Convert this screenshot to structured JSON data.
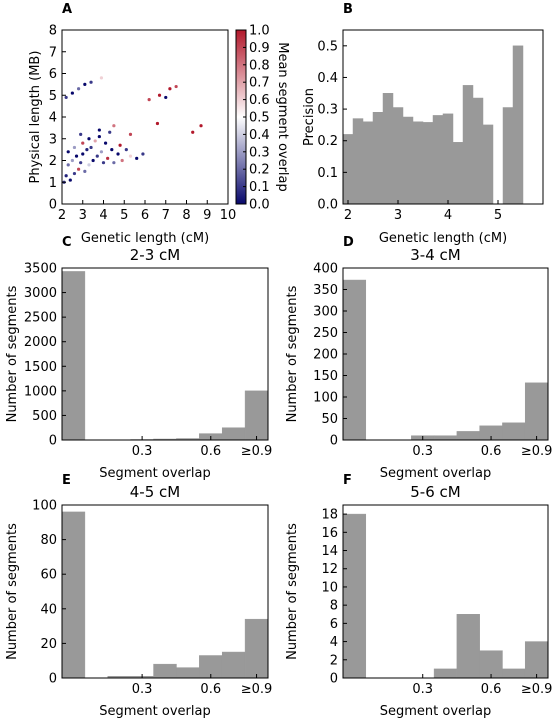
{
  "panels": {
    "A": {
      "label": "A"
    },
    "B": {
      "label": "B"
    },
    "C": {
      "label": "C"
    },
    "D": {
      "label": "D"
    },
    "E": {
      "label": "E"
    },
    "F": {
      "label": "F"
    }
  },
  "colors": {
    "bar": "#999999",
    "cmap_low": "#08086b",
    "cmap_mid": "#ffffff",
    "cmap_high": "#b2182b"
  },
  "chart_data": [
    {
      "id": "A",
      "type": "scatter",
      "title": "",
      "xlabel": "Genetic length (cM)",
      "ylabel": "Physical length (MB)",
      "xlim": [
        2,
        10
      ],
      "ylim": [
        0,
        8
      ],
      "xticks": [
        "2",
        "3",
        "4",
        "5",
        "6",
        "7",
        "8",
        "9",
        "10"
      ],
      "yticks": [
        "0",
        "1",
        "2",
        "3",
        "4",
        "5",
        "6",
        "7",
        "8"
      ],
      "colorbar": {
        "label": "Mean segment overlap",
        "range": [
          0.0,
          1.0
        ],
        "ticks": [
          "0.0",
          "0.1",
          "0.2",
          "0.3",
          "0.4",
          "0.5",
          "0.6",
          "0.7",
          "0.8",
          "0.9",
          "1.0"
        ]
      },
      "points_note_free": true,
      "points": [
        [
          2.1,
          1.0,
          0.1
        ],
        [
          2.2,
          1.3,
          0.05
        ],
        [
          2.3,
          1.8,
          0.2
        ],
        [
          2.4,
          1.1,
          0.0
        ],
        [
          2.5,
          2.0,
          0.3
        ],
        [
          2.6,
          1.4,
          0.1
        ],
        [
          2.7,
          2.2,
          0.0
        ],
        [
          2.8,
          1.6,
          0.9
        ],
        [
          2.9,
          1.9,
          0.1
        ],
        [
          3.0,
          2.3,
          0.0
        ],
        [
          3.1,
          1.5,
          0.2
        ],
        [
          3.2,
          2.5,
          0.05
        ],
        [
          3.3,
          1.8,
          0.4
        ],
        [
          3.4,
          2.6,
          0.1
        ],
        [
          3.5,
          2.0,
          0.0
        ],
        [
          3.6,
          2.9,
          0.7
        ],
        [
          3.7,
          2.2,
          0.1
        ],
        [
          3.8,
          3.1,
          0.0
        ],
        [
          3.9,
          2.4,
          0.3
        ],
        [
          4.0,
          1.9,
          0.1
        ],
        [
          4.1,
          2.8,
          0.0
        ],
        [
          4.2,
          2.1,
          0.95
        ],
        [
          4.3,
          3.3,
          0.1
        ],
        [
          4.4,
          2.5,
          0.0
        ],
        [
          4.5,
          1.9,
          0.2
        ],
        [
          4.7,
          2.3,
          0.0
        ],
        [
          4.9,
          2.0,
          0.8
        ],
        [
          5.1,
          2.5,
          0.1
        ],
        [
          5.3,
          2.2,
          0.6
        ],
        [
          5.6,
          2.1,
          0.0
        ],
        [
          2.2,
          4.9,
          0.1
        ],
        [
          2.5,
          5.1,
          0.0
        ],
        [
          2.8,
          5.3,
          0.2
        ],
        [
          3.1,
          5.5,
          0.0
        ],
        [
          3.4,
          5.6,
          0.1
        ],
        [
          3.7,
          5.8,
          0.5
        ],
        [
          3.9,
          5.8,
          0.6
        ],
        [
          6.2,
          4.8,
          0.9
        ],
        [
          6.7,
          5.0,
          1.0
        ],
        [
          7.2,
          5.3,
          1.0
        ],
        [
          7.5,
          5.4,
          0.9
        ],
        [
          7.0,
          4.9,
          0.0
        ],
        [
          8.3,
          3.3,
          1.0
        ],
        [
          8.7,
          3.6,
          1.0
        ],
        [
          6.6,
          3.7,
          1.0
        ],
        [
          5.3,
          3.2,
          0.9
        ],
        [
          4.5,
          3.6,
          0.8
        ],
        [
          5.9,
          2.3,
          0.1
        ],
        [
          3.8,
          3.4,
          0.0
        ],
        [
          2.9,
          3.2,
          0.1
        ],
        [
          2.3,
          2.4,
          0.0
        ],
        [
          2.6,
          2.6,
          0.3
        ],
        [
          3.0,
          2.8,
          0.9
        ],
        [
          3.3,
          3.0,
          0.0
        ],
        [
          4.8,
          2.7,
          1.0
        ]
      ]
    },
    {
      "id": "B",
      "type": "bar",
      "title": "",
      "xlabel": "Genetic length (cM)",
      "ylabel": "Precision",
      "xlim": [
        1.9,
        5.9
      ],
      "ylim": [
        0,
        0.55
      ],
      "xticks": [
        "2",
        "3",
        "4",
        "5"
      ],
      "yticks": [
        "0.0",
        "0.1",
        "0.2",
        "0.3",
        "0.4",
        "0.5"
      ],
      "bin_start": 1.9,
      "bin_width": 0.2,
      "values": [
        0.22,
        0.27,
        0.26,
        0.29,
        0.35,
        0.305,
        0.275,
        0.26,
        0.258,
        0.28,
        0.285,
        0.195,
        0.375,
        0.335,
        0.25,
        0.0,
        0.305,
        0.5
      ]
    },
    {
      "id": "C",
      "type": "bar",
      "title": "2-3 cM",
      "xlabel": "Segment overlap",
      "ylabel": "Number of segments",
      "ylim": [
        0,
        3500
      ],
      "xticks": [
        "0.3",
        "0.6",
        "≥0.9"
      ],
      "yticks": [
        "0",
        "500",
        "1000",
        "1500",
        "2000",
        "2500",
        "3000",
        "3500"
      ],
      "values": [
        3430,
        0,
        0,
        10,
        20,
        30,
        130,
        250,
        1000
      ]
    },
    {
      "id": "D",
      "type": "bar",
      "title": "3-4 cM",
      "xlabel": "Segment overlap",
      "ylabel": "Number of segments",
      "ylim": [
        0,
        400
      ],
      "xticks": [
        "0.3",
        "0.6",
        "≥0.9"
      ],
      "yticks": [
        "0",
        "50",
        "100",
        "150",
        "200",
        "250",
        "300",
        "350",
        "400"
      ],
      "values": [
        372,
        0,
        0,
        10,
        10,
        20,
        33,
        40,
        133
      ]
    },
    {
      "id": "E",
      "type": "bar",
      "title": "4-5 cM",
      "xlabel": "Segment overlap",
      "ylabel": "Number of segments",
      "ylim": [
        0,
        100
      ],
      "xticks": [
        "0.3",
        "0.6",
        "≥0.9"
      ],
      "yticks": [
        "0",
        "20",
        "40",
        "60",
        "80",
        "100"
      ],
      "values": [
        96,
        0,
        1,
        1,
        8,
        6,
        13,
        15,
        34
      ]
    },
    {
      "id": "F",
      "type": "bar",
      "title": "5-6 cM",
      "xlabel": "Segment overlap",
      "ylabel": "Number of segments",
      "ylim": [
        0,
        19
      ],
      "xticks": [
        "0.3",
        "0.6",
        "≥0.9"
      ],
      "yticks": [
        "0",
        "2",
        "4",
        "6",
        "8",
        "10",
        "12",
        "14",
        "16",
        "18"
      ],
      "values": [
        18,
        0,
        0,
        0,
        1,
        7,
        3,
        1,
        4
      ]
    }
  ]
}
